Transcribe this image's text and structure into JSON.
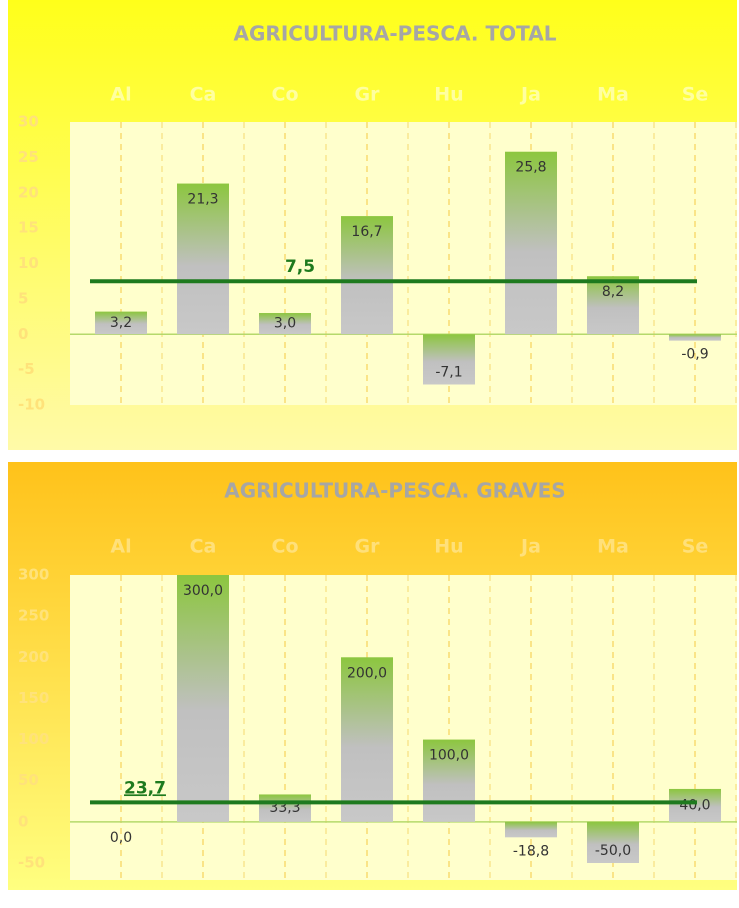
{
  "chart_data": [
    {
      "type": "bar",
      "title": "AGRICULTURA-PESCA. TOTAL",
      "categories": [
        "Al",
        "Ca",
        "Co",
        "Gr",
        "Hu",
        "Ja",
        "Ma",
        "Se"
      ],
      "values": [
        3.2,
        21.3,
        3.0,
        16.7,
        -7.1,
        25.8,
        8.2,
        -0.9
      ],
      "value_labels": [
        "3,2",
        "21,3",
        "3,0",
        "16,7",
        "-7,1",
        "25,8",
        "8,2",
        "-0,9"
      ],
      "ylim": [
        -10,
        30
      ],
      "yticks": [
        -10,
        -5,
        0,
        5,
        10,
        15,
        20,
        25,
        30
      ],
      "average": 7.5,
      "average_label": "7,5",
      "average_color": "#1e7a1e"
    },
    {
      "type": "bar",
      "title": "AGRICULTURA-PESCA. GRAVES",
      "categories": [
        "Al",
        "Ca",
        "Co",
        "Gr",
        "Hu",
        "Ja",
        "Ma",
        "Se"
      ],
      "values": [
        0.0,
        300.0,
        33.3,
        200.0,
        100.0,
        -18.8,
        -50.0,
        40.0
      ],
      "value_labels": [
        "0,0",
        "300,0",
        "33,3",
        "200,0",
        "100,0",
        "-18,8",
        "-50,0",
        "40,0"
      ],
      "ylim": [
        -50,
        300
      ],
      "yticks": [
        -50,
        0,
        50,
        100,
        150,
        200,
        250,
        300
      ],
      "average": 23.7,
      "average_label": "23,7",
      "average_color": "#1e7a1e"
    }
  ]
}
